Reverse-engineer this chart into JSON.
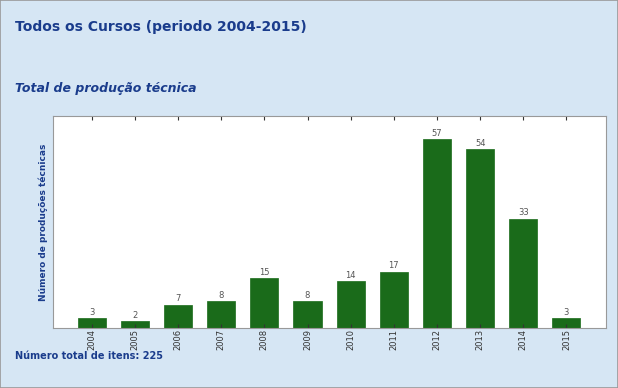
{
  "title": "Todos os Cursos (periodo 2004-2015)",
  "subtitle": "Total de produção técnica",
  "categories": [
    "2004",
    "2005",
    "2006",
    "2007",
    "2008",
    "2009",
    "2010",
    "2011",
    "2012",
    "2013",
    "2014",
    "2015"
  ],
  "values": [
    3,
    2,
    7,
    8,
    15,
    8,
    14,
    17,
    57,
    54,
    33,
    3
  ],
  "bar_color": "#1a6b1a",
  "ylabel": "Número de produções técnicas",
  "footer": "Número total de itens: 225",
  "bg_color": "#d6e6f4",
  "title_box_color": "#c0d5e8",
  "plot_bg": "#ffffff",
  "border_color": "#999999",
  "title_color": "#1a3c8c",
  "subtitle_color": "#1a3c8c",
  "footer_color": "#1a3c8c",
  "ylabel_color": "#1a3c8c",
  "label_color": "#555555",
  "label_fontsize": 6,
  "title_fontsize": 10,
  "subtitle_fontsize": 9,
  "footer_fontsize": 7,
  "ylabel_fontsize": 6.5,
  "tick_fontsize": 6
}
